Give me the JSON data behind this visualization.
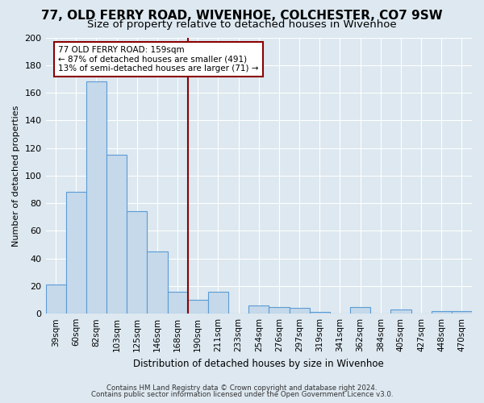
{
  "title": "77, OLD FERRY ROAD, WIVENHOE, COLCHESTER, CO7 9SW",
  "subtitle": "Size of property relative to detached houses in Wivenhoe",
  "xlabel": "Distribution of detached houses by size in Wivenhoe",
  "ylabel": "Number of detached properties",
  "bar_labels": [
    "39sqm",
    "60sqm",
    "82sqm",
    "103sqm",
    "125sqm",
    "146sqm",
    "168sqm",
    "190sqm",
    "211sqm",
    "233sqm",
    "254sqm",
    "276sqm",
    "297sqm",
    "319sqm",
    "341sqm",
    "362sqm",
    "384sqm",
    "405sqm",
    "427sqm",
    "448sqm",
    "470sqm"
  ],
  "bar_values": [
    21,
    88,
    168,
    115,
    74,
    45,
    16,
    10,
    16,
    0,
    6,
    5,
    4,
    1,
    0,
    5,
    0,
    3,
    0,
    2,
    2
  ],
  "bar_color": "#c5d9ea",
  "bar_edge_color": "#5b9bd5",
  "ylim": [
    0,
    200
  ],
  "yticks": [
    0,
    20,
    40,
    60,
    80,
    100,
    120,
    140,
    160,
    180,
    200
  ],
  "vline_x": 6.5,
  "vline_color": "#8b0000",
  "annotation_line1": "77 OLD FERRY ROAD: 159sqm",
  "annotation_line2": "← 87% of detached houses are smaller (491)",
  "annotation_line3": "13% of semi-detached houses are larger (71) →",
  "annotation_box_color": "#ffffff",
  "annotation_box_edge": "#8b0000",
  "footer1": "Contains HM Land Registry data © Crown copyright and database right 2024.",
  "footer2": "Contains public sector information licensed under the Open Government Licence v3.0.",
  "background_color": "#dde8f0",
  "plot_bg_color": "#dde8f0",
  "title_fontsize": 11,
  "subtitle_fontsize": 9.5
}
